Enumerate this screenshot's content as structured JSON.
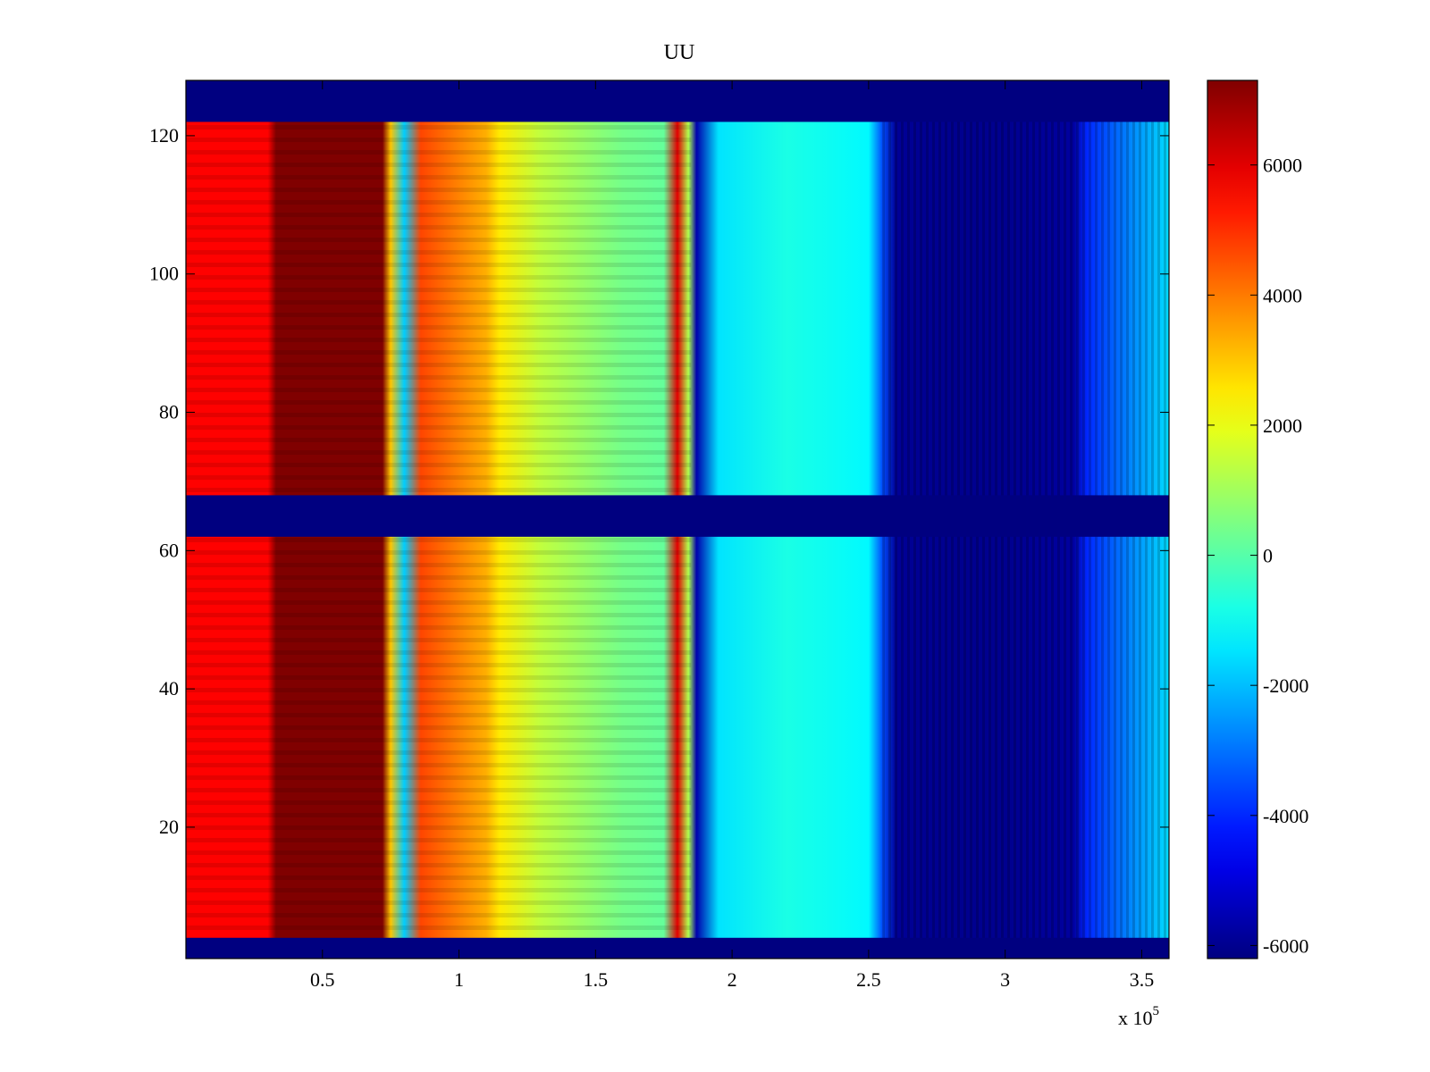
{
  "chart_data": {
    "type": "heatmap",
    "title": "UU",
    "xlabel": "",
    "ylabel": "",
    "x_exponent_label": "x 10",
    "x_exponent_power": "5",
    "xlim": [
      0,
      3.6
    ],
    "ylim": [
      1,
      128
    ],
    "x_ticks": [
      0.5,
      1,
      1.5,
      2,
      2.5,
      3,
      3.5
    ],
    "x_tick_labels": [
      "0.5",
      "1",
      "1.5",
      "2",
      "2.5",
      "3",
      "3.5"
    ],
    "y_ticks": [
      20,
      40,
      60,
      80,
      100,
      120
    ],
    "y_tick_labels": [
      "20",
      "40",
      "60",
      "80",
      "100",
      "120"
    ],
    "colorbar": {
      "colormap": "jet",
      "range": [
        -6200,
        7300
      ],
      "ticks": [
        -6000,
        -4000,
        -2000,
        0,
        2000,
        4000,
        6000
      ],
      "tick_labels": [
        "-6000",
        "-4000",
        "-2000",
        "0",
        "2000",
        "4000",
        "6000"
      ]
    },
    "masked_row_bands": [
      [
        1,
        4
      ],
      [
        62,
        68
      ],
      [
        122,
        128
      ]
    ],
    "column_profile": {
      "x": [
        0,
        0.3,
        0.33,
        0.72,
        0.75,
        0.8,
        0.86,
        1.1,
        1.15,
        1.3,
        1.6,
        1.75,
        1.8,
        1.84,
        1.87,
        1.95,
        2.2,
        2.5,
        2.55,
        2.6,
        2.8,
        3.0,
        3.25,
        3.3,
        3.45,
        3.6
      ],
      "values": [
        5600,
        5600,
        7300,
        7300,
        3000,
        -1800,
        4700,
        3300,
        2500,
        1400,
        400,
        200,
        6000,
        1200,
        -5600,
        -1500,
        -800,
        -1200,
        -3500,
        -5900,
        -6000,
        -6000,
        -5800,
        -4000,
        -2800,
        -1600
      ]
    }
  }
}
